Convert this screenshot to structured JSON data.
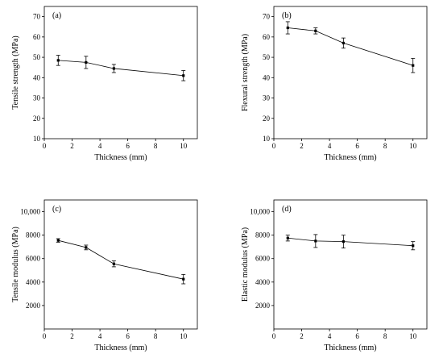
{
  "chart_data": [
    {
      "type": "line",
      "panel_label": "(a)",
      "xlabel": "Thickness (mm)",
      "ylabel": "Tensile strength (MPa)",
      "xlim": [
        0,
        11
      ],
      "ylim": [
        10,
        75
      ],
      "xticks": [
        0,
        2,
        4,
        6,
        8,
        10
      ],
      "xtick_labels": [
        "0",
        "2",
        "4",
        "6",
        "8",
        "10"
      ],
      "yticks": [
        10,
        20,
        30,
        40,
        50,
        60,
        70
      ],
      "ytick_labels": [
        "10",
        "20",
        "30",
        "40",
        "50",
        "60",
        "70"
      ],
      "x": [
        1,
        3,
        5,
        10
      ],
      "values": [
        48.5,
        47.5,
        44.5,
        41
      ],
      "errors": [
        2.5,
        3,
        2,
        2.5
      ]
    },
    {
      "type": "line",
      "panel_label": "(b)",
      "xlabel": "Thickness (mm)",
      "ylabel": "Flexural strength (MPa)",
      "xlim": [
        0,
        11
      ],
      "ylim": [
        10,
        75
      ],
      "xticks": [
        0,
        2,
        4,
        6,
        8,
        10
      ],
      "xtick_labels": [
        "0",
        "2",
        "4",
        "6",
        "8",
        "10"
      ],
      "yticks": [
        10,
        20,
        30,
        40,
        50,
        60,
        70
      ],
      "ytick_labels": [
        "10",
        "20",
        "30",
        "40",
        "50",
        "60",
        "70"
      ],
      "x": [
        1,
        3,
        5,
        10
      ],
      "values": [
        64.5,
        63,
        57,
        46
      ],
      "errors": [
        3,
        1.5,
        2.5,
        3.5
      ]
    },
    {
      "type": "line",
      "panel_label": "(c)",
      "xlabel": "Thickness (mm)",
      "ylabel": "Tensile modulus (MPa)",
      "xlim": [
        0,
        11
      ],
      "ylim": [
        0,
        11000
      ],
      "xticks": [
        0,
        2,
        4,
        6,
        8,
        10
      ],
      "xtick_labels": [
        "0",
        "2",
        "4",
        "6",
        "8",
        "10"
      ],
      "yticks": [
        2000,
        4000,
        6000,
        8000,
        10000
      ],
      "ytick_labels": [
        "2000",
        "4000",
        "6000",
        "8000",
        "10,000"
      ],
      "x": [
        1,
        3,
        5,
        10
      ],
      "values": [
        7550,
        6950,
        5550,
        4250
      ],
      "errors": [
        150,
        200,
        250,
        400
      ]
    },
    {
      "type": "line",
      "panel_label": "(d)",
      "xlabel": "Thickness (mm)",
      "ylabel": "Elastic modulus (MPa)",
      "xlim": [
        0,
        11
      ],
      "ylim": [
        0,
        11000
      ],
      "xticks": [
        0,
        2,
        4,
        6,
        8,
        10
      ],
      "xtick_labels": [
        "0",
        "2",
        "4",
        "6",
        "8",
        "10"
      ],
      "yticks": [
        2000,
        4000,
        6000,
        8000,
        10000
      ],
      "ytick_labels": [
        "2000",
        "4000",
        "6000",
        "8000",
        "10,000"
      ],
      "x": [
        1,
        3,
        5,
        10
      ],
      "values": [
        7750,
        7500,
        7450,
        7100
      ],
      "errors": [
        250,
        550,
        550,
        350
      ]
    }
  ]
}
